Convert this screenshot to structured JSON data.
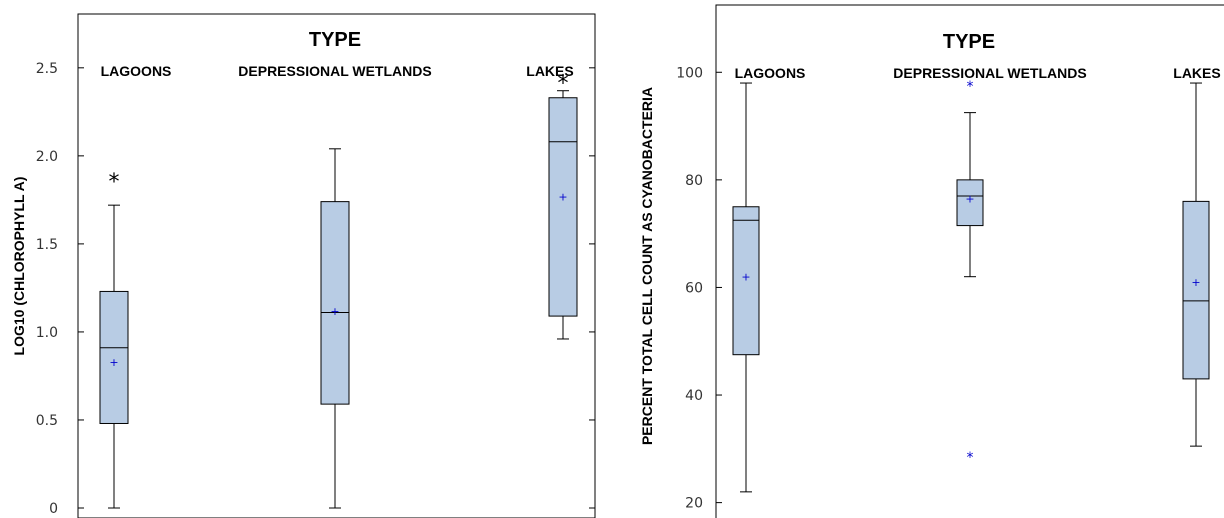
{
  "colors": {
    "box_fill": "#b8cce4",
    "mean_marker": "#0000cc",
    "outlier_marker_right": "#0000cc",
    "outlier_marker_left": "#000000",
    "line": "#000000"
  },
  "chart_data": [
    {
      "type": "box",
      "title": "TYPE",
      "xlabel": "",
      "ylabel": "LOG10 (CHLOROPHYLL A)",
      "categories": [
        "LAGOONS",
        "DEPRESSIONAL WETLANDS",
        "LAKES"
      ],
      "ylim": [
        0,
        2.8
      ],
      "yticks": [
        "0",
        "0.5",
        "1.0",
        "1.5",
        "2.0",
        "2.5"
      ],
      "ytick_values": [
        0,
        0.5,
        1.0,
        1.5,
        2.0,
        2.5
      ],
      "grid": false,
      "boxes": [
        {
          "category": "LAGOONS",
          "whisker_low": 0.0,
          "q1": 0.48,
          "median": 0.91,
          "q3": 1.23,
          "whisker_high": 1.72,
          "mean": 0.83,
          "outliers": [
            1.88
          ]
        },
        {
          "category": "DEPRESSIONAL WETLANDS",
          "whisker_low": 0.0,
          "q1": 0.59,
          "median": 1.11,
          "q3": 1.74,
          "whisker_high": 2.04,
          "mean": 1.12,
          "outliers": []
        },
        {
          "category": "LAKES",
          "whisker_low": 0.96,
          "q1": 1.09,
          "median": 2.08,
          "q3": 2.33,
          "whisker_high": 2.37,
          "mean": 1.77,
          "outliers": [
            2.44
          ]
        }
      ]
    },
    {
      "type": "box",
      "title": "TYPE",
      "xlabel": "",
      "ylabel": "PERCENT TOTAL CELL COUNT AS CYANOBACTERIA",
      "categories": [
        "LAGOONS",
        "DEPRESSIONAL WETLANDS",
        "LAKES"
      ],
      "ylim": [
        19,
        106
      ],
      "yticks": [
        "20",
        "40",
        "60",
        "80",
        "100"
      ],
      "ytick_values": [
        20,
        40,
        60,
        80,
        100
      ],
      "grid": false,
      "boxes": [
        {
          "category": "LAGOONS",
          "whisker_low": 22,
          "q1": 47.5,
          "median": 72.5,
          "q3": 75,
          "whisker_high": 98,
          "mean": 62,
          "outliers": []
        },
        {
          "category": "DEPRESSIONAL WETLANDS",
          "whisker_low": 62,
          "q1": 71.5,
          "median": 77,
          "q3": 80,
          "whisker_high": 92.5,
          "mean": 76.5,
          "outliers": [
            98,
            29
          ]
        },
        {
          "category": "LAKES",
          "whisker_low": 30.5,
          "q1": 43,
          "median": 57.5,
          "q3": 76,
          "whisker_high": 98,
          "mean": 61,
          "outliers": []
        }
      ]
    }
  ]
}
